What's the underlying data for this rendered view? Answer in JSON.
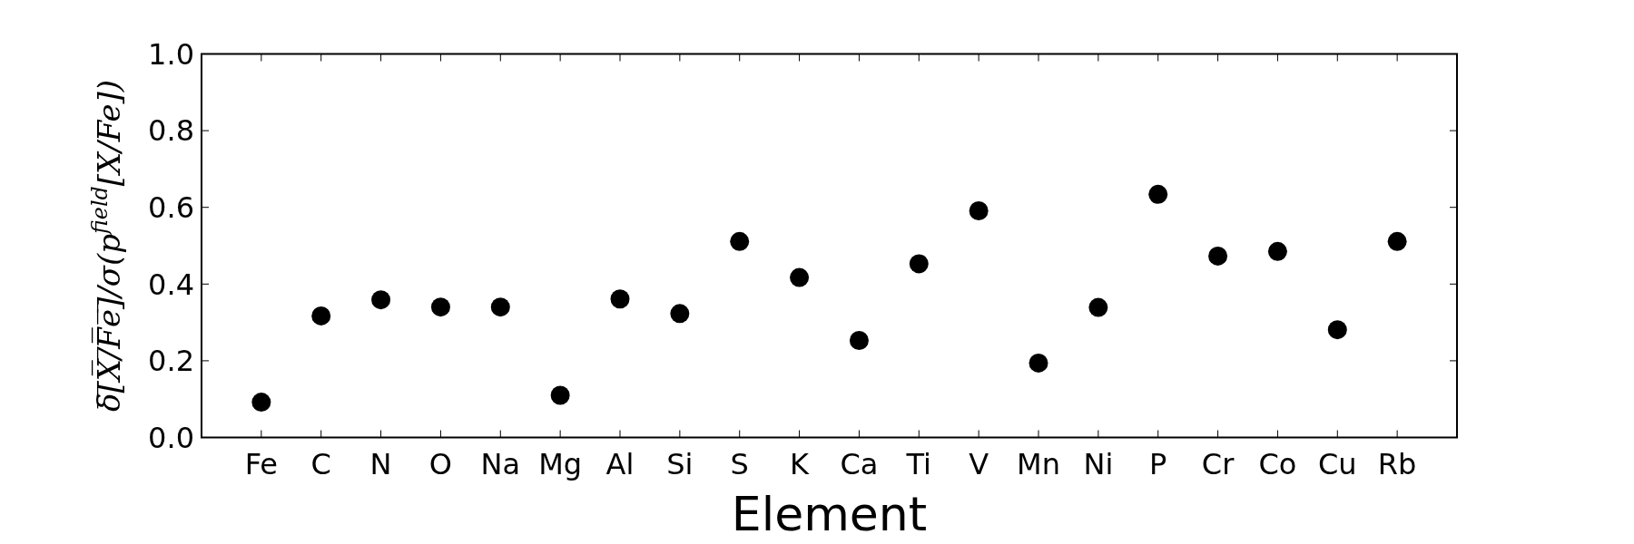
{
  "chart_data": {
    "type": "scatter",
    "xlabel": "Element",
    "ylabel": "δ̅[̅X̅/̅F̅e̅]̅/σ(p$^{field}$[X/Fe])",
    "categories": [
      "Fe",
      "C",
      "N",
      "O",
      "Na",
      "Mg",
      "Al",
      "Si",
      "S",
      "K",
      "Ca",
      "Ti",
      "V",
      "Mn",
      "Ni",
      "P",
      "Cr",
      "Co",
      "Cu",
      "Rb"
    ],
    "series": [
      {
        "color": "#000000",
        "values": [
          0.092,
          0.317,
          0.359,
          0.34,
          0.34,
          0.11,
          0.361,
          0.323,
          0.511,
          0.417,
          0.253,
          0.453,
          0.591,
          0.194,
          0.339,
          0.634,
          0.473,
          0.485,
          0.281,
          0.511
        ]
      }
    ],
    "ylim": [
      0,
      1
    ],
    "yticks": [
      {
        "value": 0,
        "label": "0.0"
      },
      {
        "value": 0.2,
        "label": "0.2"
      },
      {
        "value": 0.4,
        "label": "0.4"
      },
      {
        "value": 0.6,
        "label": "0.6"
      },
      {
        "value": 0.8,
        "label": "0.8"
      },
      {
        "value": 1,
        "label": "1.0"
      }
    ],
    "marker": "circle",
    "grid": false
  }
}
